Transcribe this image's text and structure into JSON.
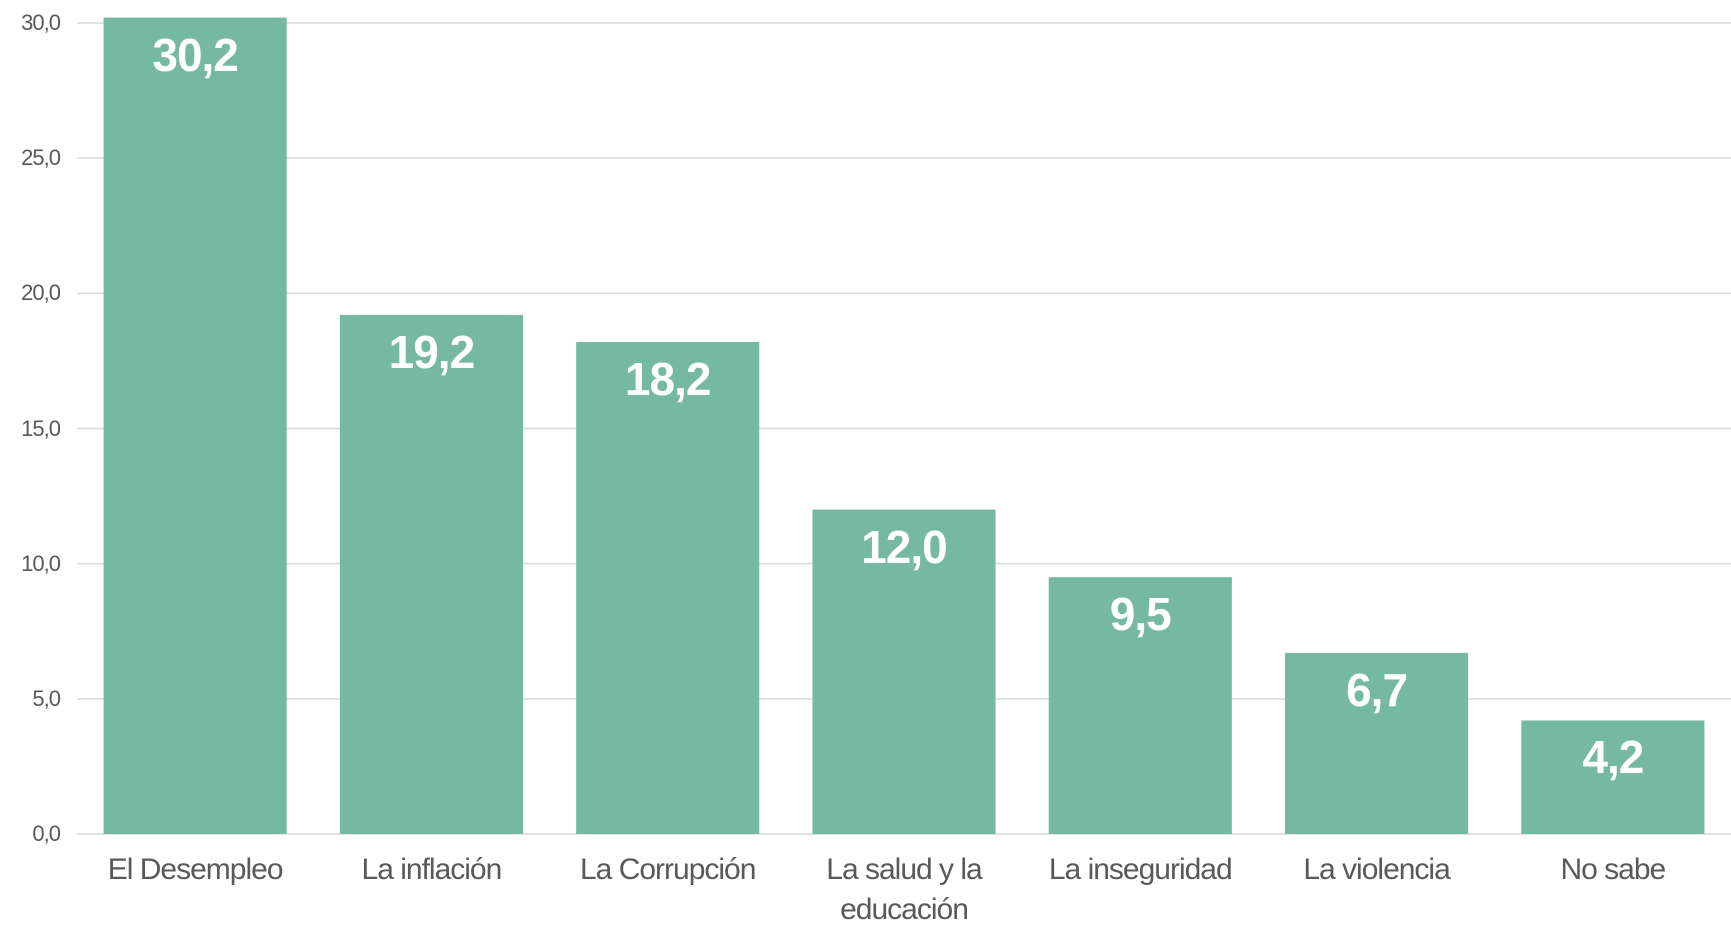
{
  "chart_data": {
    "type": "bar",
    "categories": [
      "El Desempleo",
      "La inflación",
      "La Corrupción",
      "La salud y la educación",
      "La inseguridad",
      "La violencia",
      "No sabe"
    ],
    "values": [
      30.2,
      19.2,
      18.2,
      12.0,
      9.5,
      6.7,
      4.2
    ],
    "value_labels": [
      "30,2",
      "19,2",
      "18,2",
      "12,0",
      "9,5",
      "6,7",
      "4,2"
    ],
    "color": "#76b9a3",
    "ylim": [
      0,
      30
    ],
    "yticks": [
      {
        "value": 0,
        "label": "0,0"
      },
      {
        "value": 5,
        "label": "5,0"
      },
      {
        "value": 10,
        "label": "10,0"
      },
      {
        "value": 15,
        "label": "15,0"
      },
      {
        "value": 20,
        "label": "20,0"
      },
      {
        "value": 25,
        "label": "25,0"
      },
      {
        "value": 30,
        "label": "30,0"
      }
    ],
    "grid": true
  }
}
